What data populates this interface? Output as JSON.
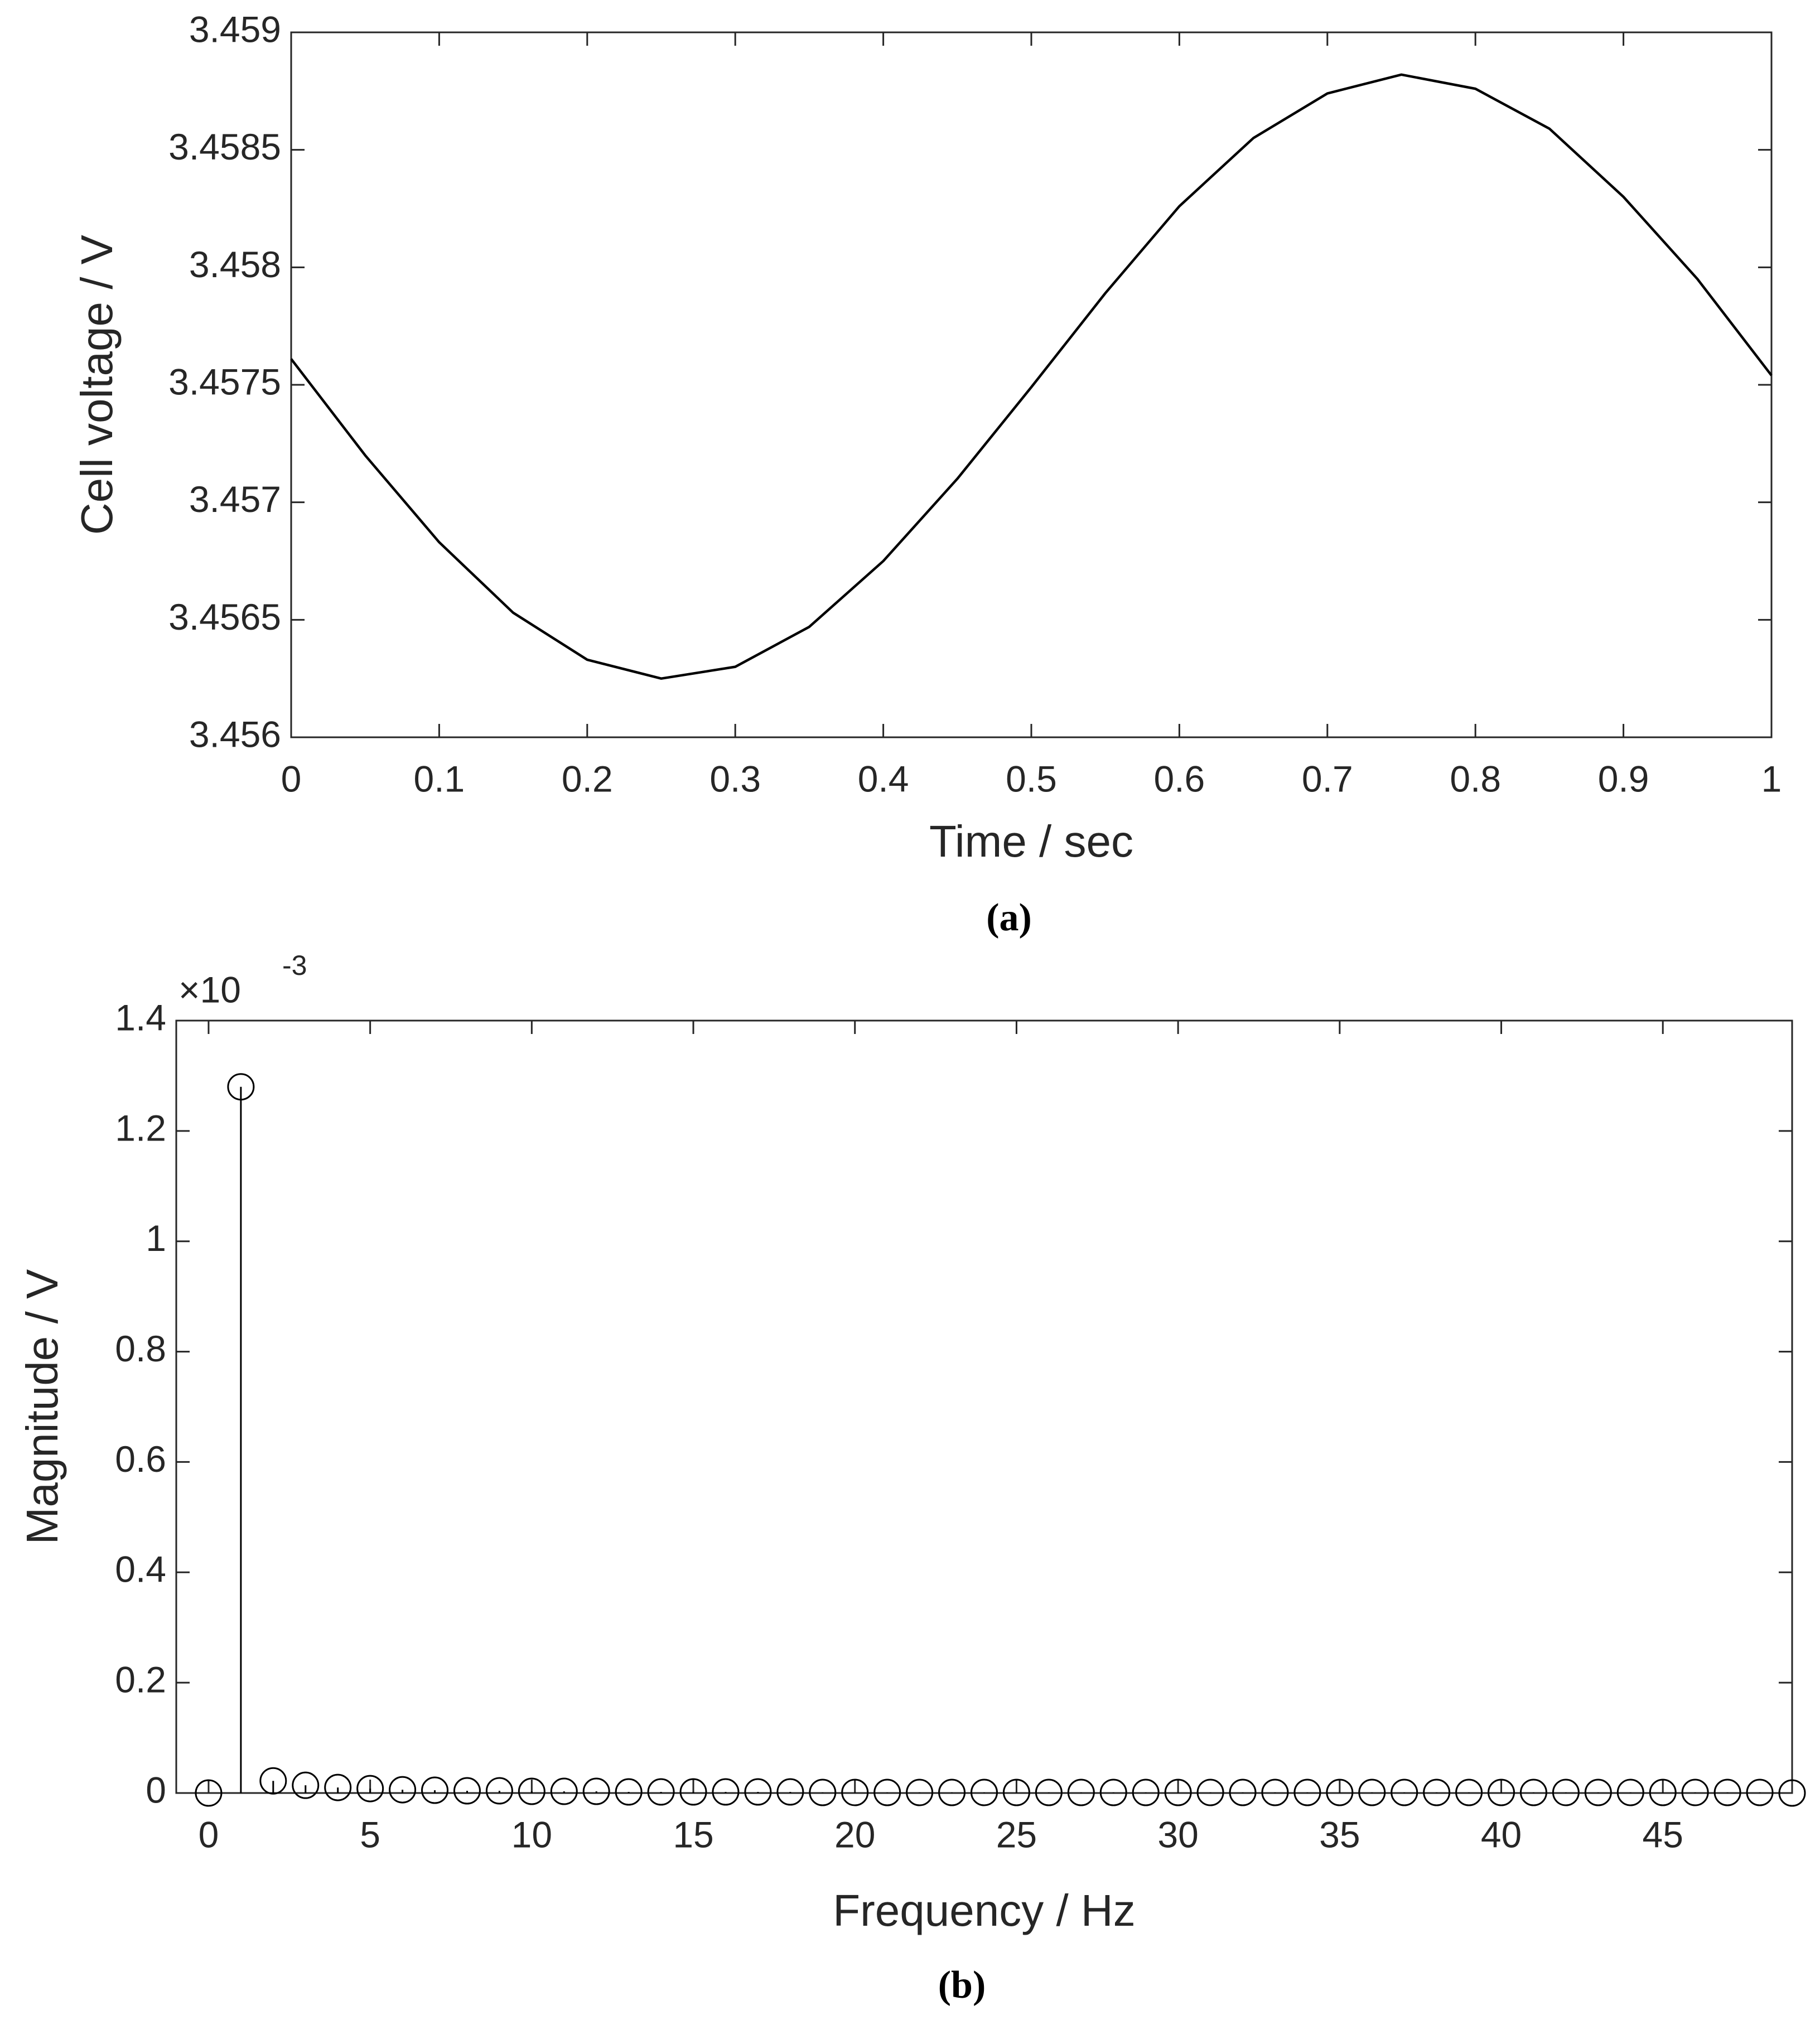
{
  "chart_data": [
    {
      "type": "line",
      "xlabel": "Time / sec",
      "ylabel": "Cell voltage / V",
      "caption": "(a)",
      "x": [
        0,
        0.05,
        0.1,
        0.15,
        0.2,
        0.25,
        0.3,
        0.35,
        0.4,
        0.45,
        0.5,
        0.55,
        0.6,
        0.65,
        0.7,
        0.75,
        0.8,
        0.85,
        0.9,
        0.95,
        1
      ],
      "series": [
        {
          "color": "#000000",
          "values": [
            3.45761,
            3.4572,
            3.45683,
            3.45653,
            3.45633,
            3.45625,
            3.4563,
            3.45647,
            3.45675,
            3.4571,
            3.45749,
            3.45789,
            3.45826,
            3.45855,
            3.45874,
            3.45882,
            3.45876,
            3.45859,
            3.4583,
            3.45795,
            3.45754
          ]
        }
      ],
      "xlim": [
        0,
        1
      ],
      "xticks": [
        0,
        0.1,
        0.2,
        0.3,
        0.4,
        0.5,
        0.6,
        0.7,
        0.8,
        0.9,
        1
      ],
      "ylim": [
        3.456,
        3.459
      ],
      "yticks": [
        3.456,
        3.4565,
        3.457,
        3.4575,
        3.458,
        3.4585,
        3.459
      ]
    },
    {
      "type": "stem",
      "xlabel": "Frequency / Hz",
      "ylabel": "Magnitude / V",
      "caption": "(b)",
      "y_multiplier": {
        "base": "×10",
        "exponent": "-3"
      },
      "x": [
        0,
        1,
        2,
        3,
        4,
        5,
        6,
        7,
        8,
        9,
        10,
        11,
        12,
        13,
        14,
        15,
        16,
        17,
        18,
        19,
        20,
        21,
        22,
        23,
        24,
        25,
        26,
        27,
        28,
        29,
        30,
        31,
        32,
        33,
        34,
        35,
        36,
        37,
        38,
        39,
        40,
        41,
        42,
        43,
        44,
        45,
        46,
        47,
        48,
        49
      ],
      "series": [
        {
          "color": "#000000",
          "values": [
            0,
            1.28,
            0.022,
            0.014,
            0.01,
            0.008,
            0.006,
            0.005,
            0.004,
            0.004,
            0.003,
            0.003,
            0.003,
            0.002,
            0.002,
            0.002,
            0.002,
            0.002,
            0.002,
            0.001,
            0.001,
            0.001,
            0.001,
            0.001,
            0.001,
            0.001,
            0.001,
            0.001,
            0.001,
            0.001,
            0.001,
            0.001,
            0.001,
            0.001,
            0.001,
            0.001,
            0.001,
            0.001,
            0.001,
            0.001,
            0.001,
            0.001,
            0.001,
            0.001,
            0.001,
            0.001,
            0.001,
            0.001,
            0.001,
            0
          ]
        }
      ],
      "xlim": [
        -1,
        49
      ],
      "xticks": [
        0,
        5,
        10,
        15,
        20,
        25,
        30,
        35,
        40,
        45
      ],
      "ylim": [
        0,
        1.4
      ],
      "yticks": [
        0,
        0.2,
        0.4,
        0.6,
        0.8,
        1,
        1.2,
        1.4
      ]
    }
  ]
}
